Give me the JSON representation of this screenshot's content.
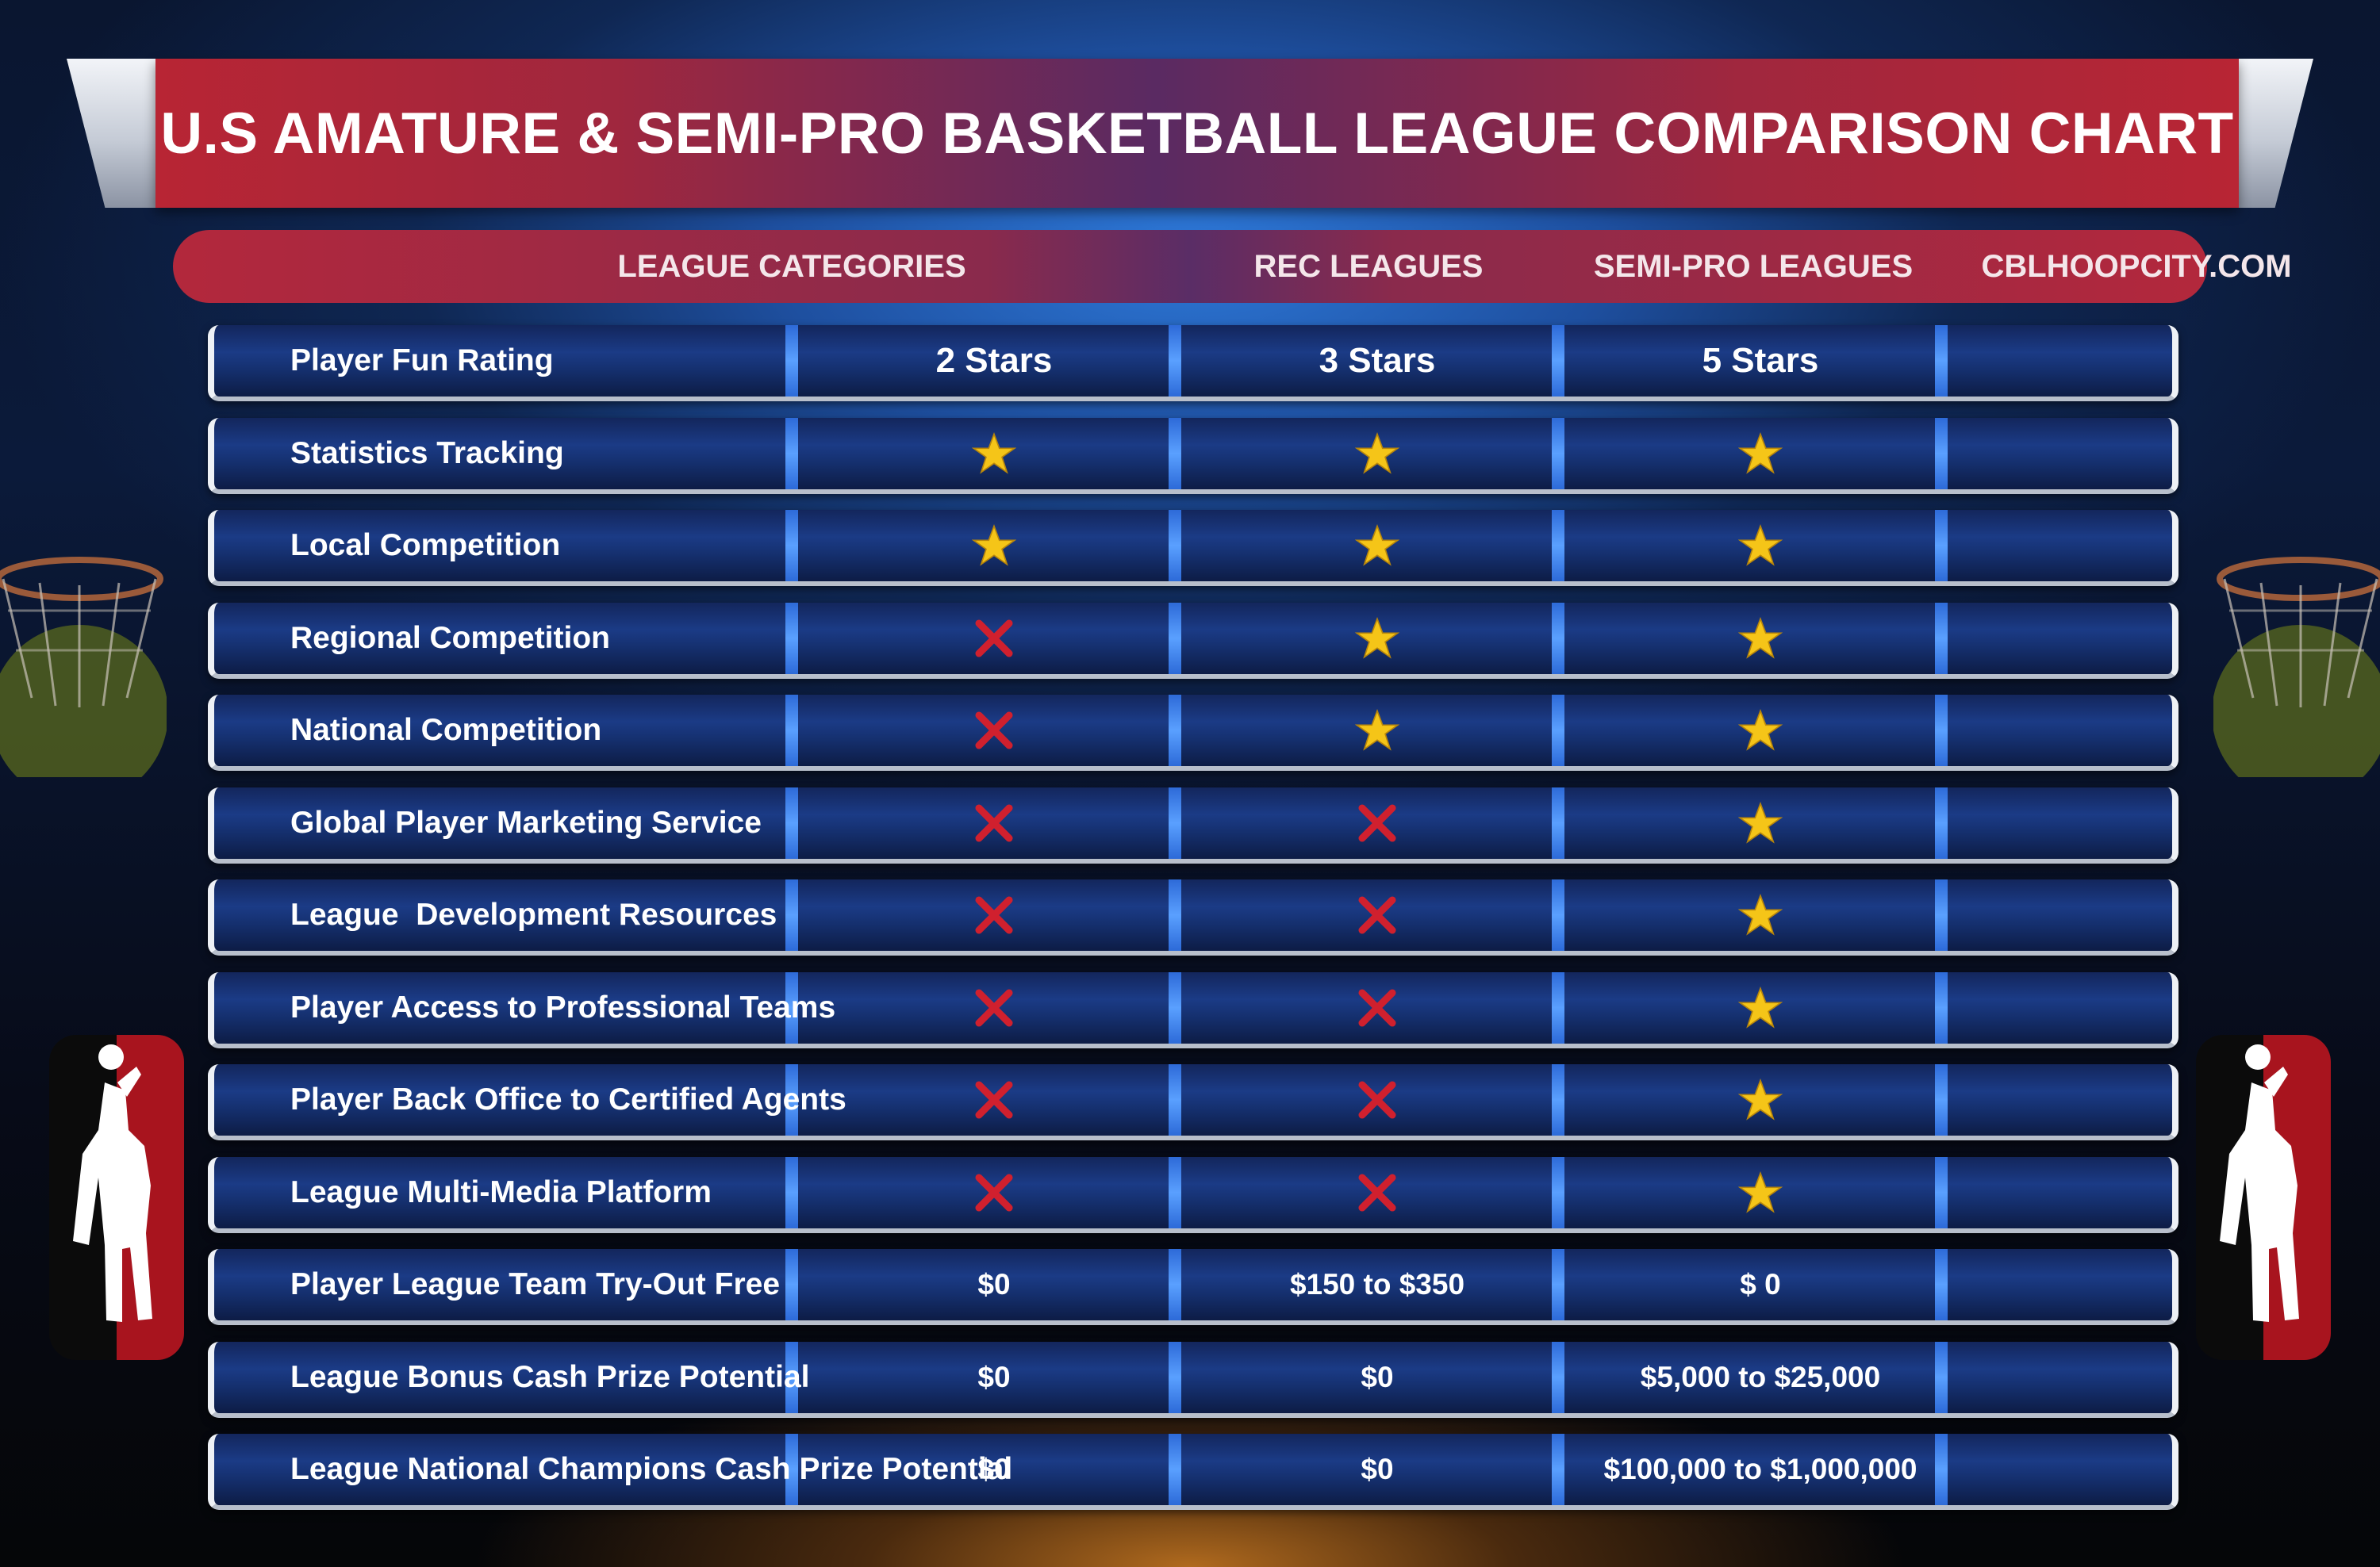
{
  "chart_data": {
    "type": "table",
    "title": "U.S AMATURE & SEMI-PRO BASKETBALL LEAGUE COMPARISON CHART",
    "columns": [
      "LEAGUE CATEGORIES",
      "REC LEAGUES",
      "SEMI-PRO LEAGUES",
      "CBLHOOPCITY.COM"
    ],
    "rows": [
      {
        "category": "Player Fun Rating",
        "values": [
          "2 Stars",
          "3 Stars",
          "5 Stars"
        ],
        "kind": "text"
      },
      {
        "category": "Statistics Tracking",
        "values": [
          "star",
          "star",
          "star"
        ],
        "kind": "mark"
      },
      {
        "category": "Local Competition",
        "values": [
          "star",
          "star",
          "star"
        ],
        "kind": "mark"
      },
      {
        "category": "Regional Competition",
        "values": [
          "x",
          "star",
          "star"
        ],
        "kind": "mark"
      },
      {
        "category": "National Competition",
        "values": [
          "x",
          "star",
          "star"
        ],
        "kind": "mark"
      },
      {
        "category": "Global Player Marketing Service",
        "values": [
          "x",
          "x",
          "star"
        ],
        "kind": "mark"
      },
      {
        "category": "League  Development Resources",
        "values": [
          "x",
          "x",
          "star"
        ],
        "kind": "mark"
      },
      {
        "category": "Player Access to Professional Teams",
        "values": [
          "x",
          "x",
          "star"
        ],
        "kind": "mark"
      },
      {
        "category": "Player Back Office to Certified Agents",
        "values": [
          "x",
          "x",
          "star"
        ],
        "kind": "mark"
      },
      {
        "category": "League Multi-Media Platform",
        "values": [
          "x",
          "x",
          "star"
        ],
        "kind": "mark"
      },
      {
        "category": "Player League Team Try-Out Free",
        "values": [
          "$0",
          "$150 to $350",
          "$ 0"
        ],
        "kind": "money"
      },
      {
        "category": "League Bonus Cash Prize Potential",
        "values": [
          "$0",
          "$0",
          "$5,000 to $25,000"
        ],
        "kind": "money"
      },
      {
        "category": "League National Champions Cash Prize Potential",
        "values": [
          "$0",
          "$0",
          "$100,000 to $1,000,000"
        ],
        "kind": "money"
      }
    ]
  },
  "colors": {
    "star": "#f5c518",
    "x_mark": "#d0202e",
    "banner_red": "#b82534",
    "row_blue": "#1b3b86"
  },
  "icons": {
    "check": "star-icon",
    "cross": "x-mark-icon",
    "decor": [
      "basketball-hoop-icon",
      "player-silhouette-icon"
    ]
  }
}
